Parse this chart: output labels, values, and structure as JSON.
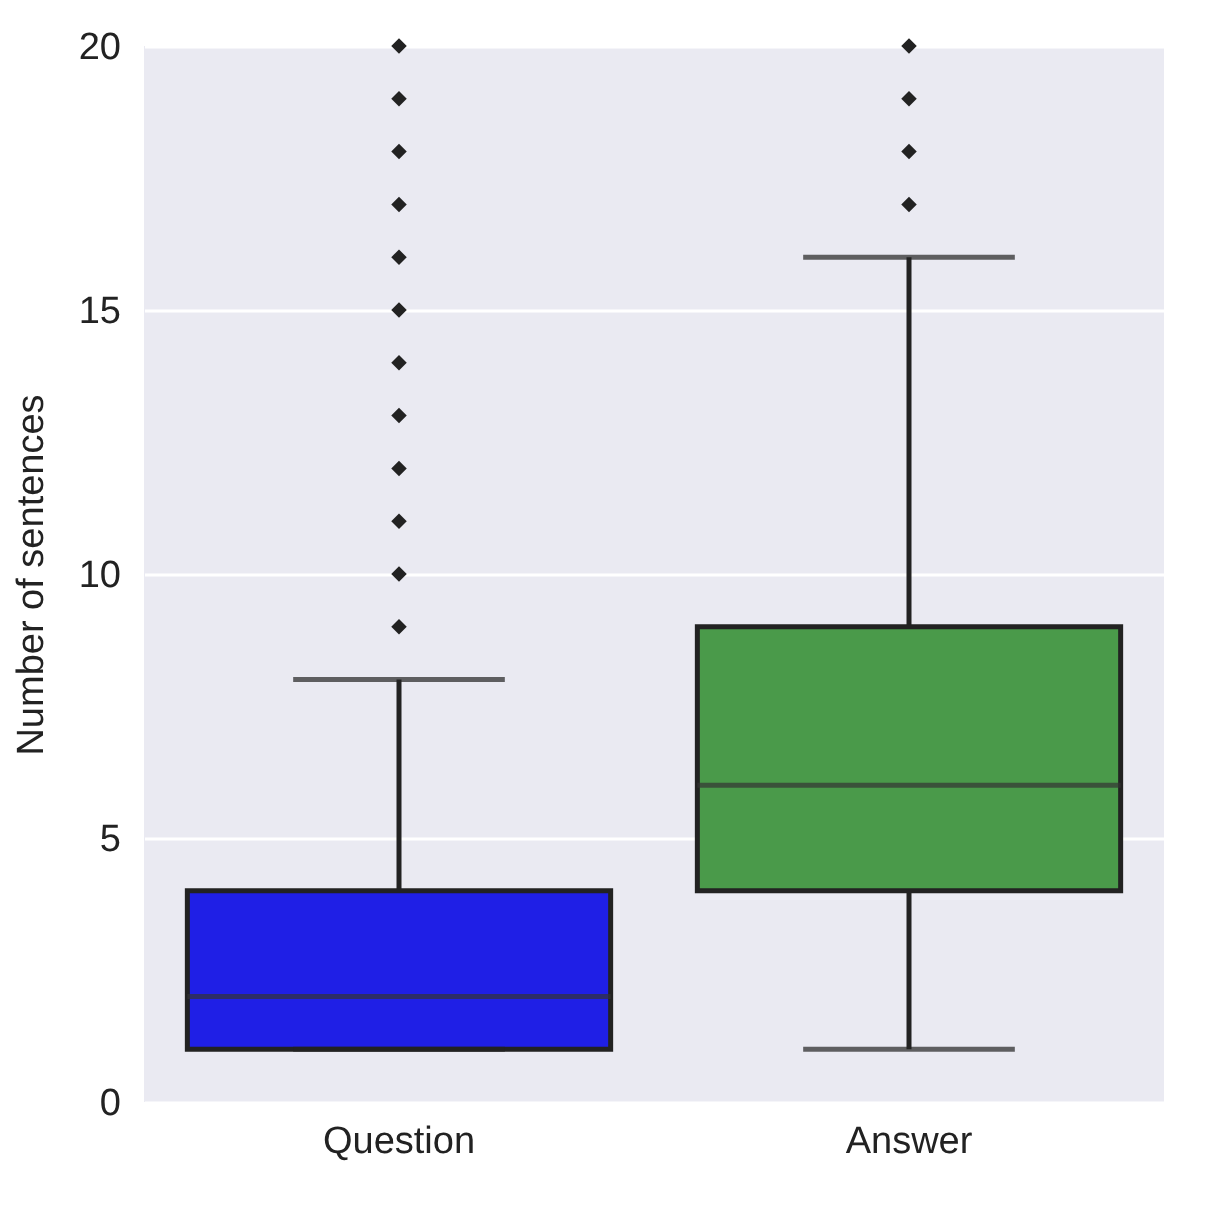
{
  "chart_data": {
    "type": "box",
    "ylabel": "Number of sentences",
    "categories": [
      "Question",
      "Answer"
    ],
    "colors": [
      "#1f1fe6",
      "#4a9a4a"
    ],
    "boxes": [
      {
        "low": 1,
        "q1": 1,
        "median": 2,
        "q3": 4,
        "high": 8,
        "outliers": [
          9,
          10,
          11,
          12,
          13,
          14,
          15,
          16,
          17,
          18,
          19,
          20
        ]
      },
      {
        "low": 1,
        "q1": 4,
        "median": 6,
        "q3": 9,
        "high": 16,
        "outliers": [
          17,
          18,
          19,
          20
        ]
      }
    ],
    "ylim": [
      0,
      20
    ],
    "yticks": [
      0,
      5,
      10,
      15,
      20
    ],
    "grid": true,
    "marker": "diamond",
    "legend": false
  }
}
